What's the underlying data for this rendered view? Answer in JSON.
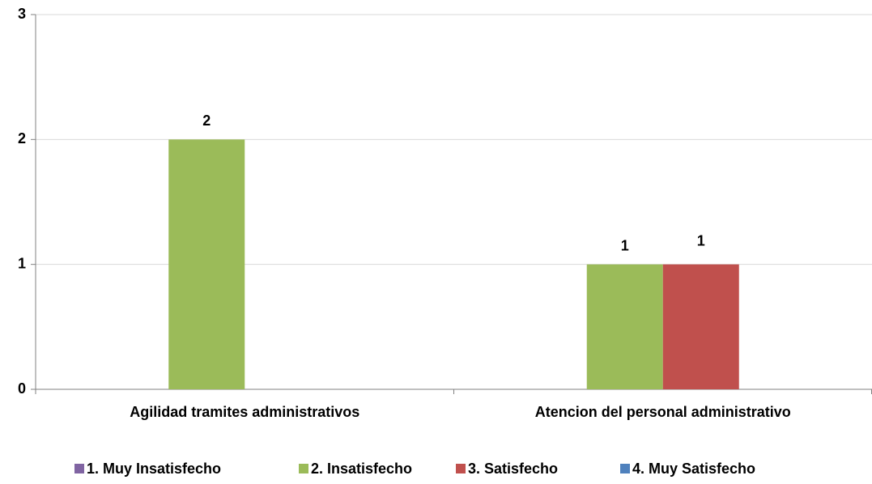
{
  "chart_data": {
    "type": "bar",
    "categories": [
      "Agilidad tramites administrativos",
      "Atencion del personal administrativo"
    ],
    "series": [
      {
        "name": "1. Muy Insatisfecho",
        "color": "#8064a2",
        "values": [
          null,
          null
        ]
      },
      {
        "name": "2. Insatisfecho",
        "color": "#9bbb59",
        "values": [
          2,
          1
        ]
      },
      {
        "name": "3. Satisfecho",
        "color": "#c0504d",
        "values": [
          null,
          1
        ]
      },
      {
        "name": "4. Muy Satisfecho",
        "color": "#4f81bd",
        "values": [
          null,
          null
        ]
      }
    ],
    "ylim": [
      0,
      3
    ],
    "yticks": [
      0,
      1,
      2,
      3
    ],
    "grid": true,
    "legend": "bottom"
  }
}
